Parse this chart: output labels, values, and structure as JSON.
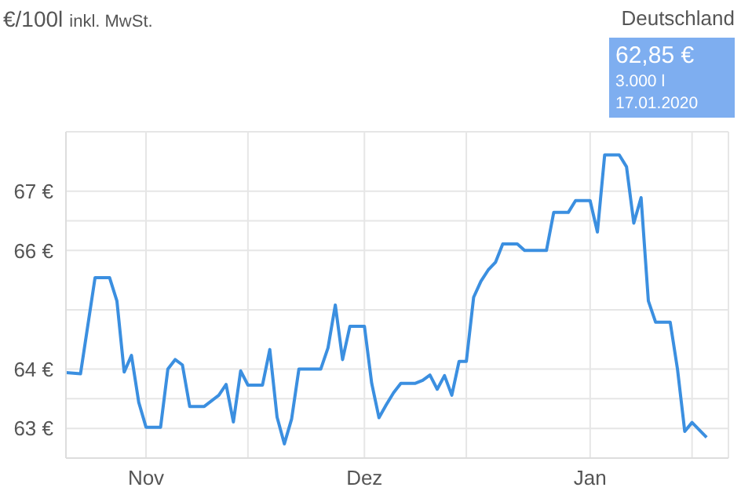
{
  "chart_data": {
    "type": "line",
    "ylabel": "€/100l",
    "subtitle": "inkl. MwSt.",
    "annotations": [
      "62,85 €",
      "3.000 l",
      "17.01.2020",
      "Deutschland"
    ],
    "x": [
      "2019-10-21",
      "2019-10-23",
      "2019-10-25",
      "2019-10-27",
      "2019-10-28",
      "2019-10-29",
      "2019-10-30",
      "2019-10-31",
      "2019-11-01",
      "2019-11-03",
      "2019-11-04",
      "2019-11-05",
      "2019-11-06",
      "2019-11-07",
      "2019-11-09",
      "2019-11-11",
      "2019-11-12",
      "2019-11-13",
      "2019-11-14",
      "2019-11-15",
      "2019-11-17",
      "2019-11-18",
      "2019-11-19",
      "2019-11-20",
      "2019-11-21",
      "2019-11-22",
      "2019-11-25",
      "2019-11-26",
      "2019-11-27",
      "2019-11-28",
      "2019-11-29",
      "2019-12-01",
      "2019-12-02",
      "2019-12-03",
      "2019-12-04",
      "2019-12-05",
      "2019-12-06",
      "2019-12-08",
      "2019-12-09",
      "2019-12-10",
      "2019-12-11",
      "2019-12-12",
      "2019-12-13",
      "2019-12-14",
      "2019-12-15",
      "2019-12-16",
      "2019-12-17",
      "2019-12-18",
      "2019-12-19",
      "2019-12-20",
      "2019-12-22",
      "2019-12-23",
      "2019-12-26",
      "2019-12-27",
      "2019-12-29",
      "2019-12-30",
      "2020-01-01",
      "2020-01-02",
      "2020-01-03",
      "2020-01-05",
      "2020-01-06",
      "2020-01-07",
      "2020-01-08",
      "2020-01-09",
      "2020-01-10",
      "2020-01-12",
      "2020-01-13",
      "2020-01-14",
      "2020-01-15",
      "2020-01-17"
    ],
    "series": [
      {
        "color": "#3b8fe0",
        "values": [
          63.94,
          63.92,
          65.54,
          65.54,
          65.15,
          63.95,
          64.23,
          63.44,
          63.02,
          63.02,
          64.0,
          64.16,
          64.07,
          63.37,
          63.37,
          63.56,
          63.74,
          63.11,
          63.97,
          63.73,
          63.73,
          64.33,
          63.19,
          62.74,
          63.16,
          64.0,
          64.0,
          64.36,
          65.08,
          64.16,
          64.72,
          64.72,
          63.76,
          63.18,
          63.4,
          63.6,
          63.76,
          63.76,
          63.81,
          63.9,
          63.66,
          63.89,
          63.56,
          64.13,
          64.13,
          65.21,
          65.48,
          65.67,
          65.8,
          66.11,
          66.11,
          66.0,
          66.0,
          66.64,
          66.64,
          66.84,
          66.84,
          66.31,
          67.61,
          67.61,
          67.41,
          66.46,
          66.89,
          65.15,
          64.79,
          64.79,
          64.0,
          62.95,
          63.1,
          62.85
        ]
      }
    ],
    "xlim": [
      "2019-10-21",
      "2020-01-20"
    ],
    "xticks": [
      {
        "value": "2019-11-01",
        "label": "Nov"
      },
      {
        "value": "2019-11-15",
        "label": null
      },
      {
        "value": "2019-12-01",
        "label": "Dez"
      },
      {
        "value": "2019-12-15",
        "label": null
      },
      {
        "value": "2020-01-01",
        "label": "Jan"
      },
      {
        "value": "2020-01-15",
        "label": null
      }
    ],
    "ylim": [
      62.5,
      68
    ],
    "yticks": [
      {
        "value": 63,
        "label": "63 €"
      },
      {
        "value": 63.5,
        "label": null
      },
      {
        "value": 64,
        "label": "64 €"
      },
      {
        "value": 65,
        "label": null
      },
      {
        "value": 66,
        "label": "66 €"
      },
      {
        "value": 66.5,
        "label": null
      },
      {
        "value": 67,
        "label": "67 €"
      }
    ],
    "grid": true,
    "marker": "none",
    "line_style": "solid"
  }
}
